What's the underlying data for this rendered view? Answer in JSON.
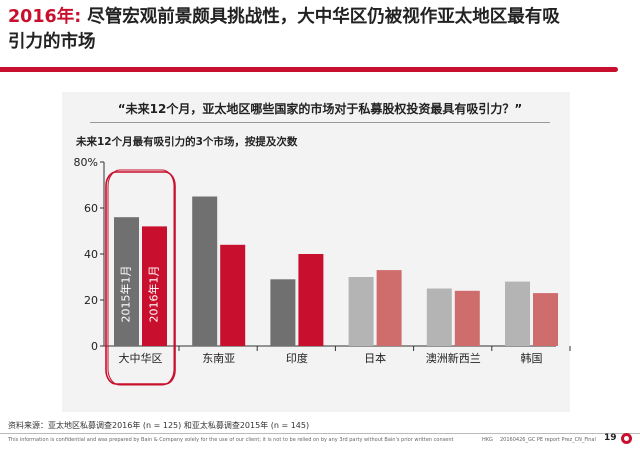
{
  "title": {
    "highlight": "2016年:",
    "text": " 尽管宏观前景颇具挑战性，大中华区仍被视作亚太地区最有吸引力的市场"
  },
  "question": "“未来12个月，亚太地区哪些国家的市场对于私募股权投资最具有吸引力？”",
  "chart_title": "未来12个月最有吸引力的3个市场，按提及次数",
  "source": "资料来源：亚太地区私募调查2016年 (n = 125) 和亚太私募调查2015年 (n = 145)",
  "footer": {
    "disclaimer": "This information is confidential and was prepared by Bain & Company solely for the use of our client; it is not to be relied on by any 3rd party without Bain's prior written consent",
    "region": "HKG",
    "doc_code": "20160426_GC PE report Prez_CN_Final",
    "page": "19"
  },
  "colors": {
    "accent": "#c8102e",
    "series_2015_highlight": "#707070",
    "series_2016_highlight": "#c8102e",
    "series_2015_other": "#b4b4b4",
    "series_2016_other": "#cf6d6d"
  },
  "chart_data": {
    "type": "bar",
    "title": "未来12个月最有吸引力的3个市场，按提及次数",
    "categories": [
      "大中华区",
      "东南亚",
      "印度",
      "日本",
      "澳洲新西兰",
      "韩国"
    ],
    "series": [
      {
        "name": "2015年1月",
        "values": [
          56,
          65,
          29,
          30,
          25,
          28
        ]
      },
      {
        "name": "2016年1月",
        "values": [
          52,
          44,
          40,
          33,
          24,
          23
        ]
      }
    ],
    "series_labels_on": "大中华区",
    "yticks": [
      "0",
      "20",
      "40",
      "60",
      "80%"
    ],
    "ylim": [
      0,
      80
    ],
    "legend": "inside-first-group",
    "grid": false
  }
}
